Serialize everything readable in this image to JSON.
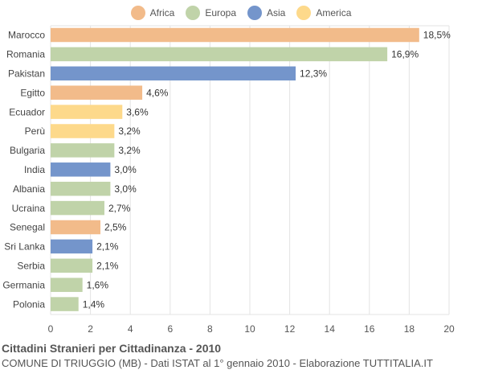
{
  "chart_data": {
    "type": "bar",
    "orientation": "horizontal",
    "title": "Cittadini Stranieri per Cittadinanza - 2010",
    "subtitle": "COMUNE DI TRIUGGIO (MB) - Dati ISTAT al 1° gennaio 2010 - Elaborazione TUTTITALIA.IT",
    "legend": [
      {
        "name": "Africa",
        "color": "#f2bb8a"
      },
      {
        "name": "Europa",
        "color": "#c0d3a9"
      },
      {
        "name": "Asia",
        "color": "#7495cb"
      },
      {
        "name": "America",
        "color": "#fdd98b"
      }
    ],
    "legend_position": "top",
    "xlim": [
      0,
      20
    ],
    "xticks": [
      0,
      2,
      4,
      6,
      8,
      10,
      12,
      14,
      16,
      18,
      20
    ],
    "grid": true,
    "bars": [
      {
        "label": "Marocco",
        "value": 18.5,
        "value_label": "18,5%",
        "group": "Africa"
      },
      {
        "label": "Romania",
        "value": 16.9,
        "value_label": "16,9%",
        "group": "Europa"
      },
      {
        "label": "Pakistan",
        "value": 12.3,
        "value_label": "12,3%",
        "group": "Asia"
      },
      {
        "label": "Egitto",
        "value": 4.6,
        "value_label": "4,6%",
        "group": "Africa"
      },
      {
        "label": "Ecuador",
        "value": 3.6,
        "value_label": "3,6%",
        "group": "America"
      },
      {
        "label": "Perù",
        "value": 3.2,
        "value_label": "3,2%",
        "group": "America"
      },
      {
        "label": "Bulgaria",
        "value": 3.2,
        "value_label": "3,2%",
        "group": "Europa"
      },
      {
        "label": "India",
        "value": 3.0,
        "value_label": "3,0%",
        "group": "Asia"
      },
      {
        "label": "Albania",
        "value": 3.0,
        "value_label": "3,0%",
        "group": "Europa"
      },
      {
        "label": "Ucraina",
        "value": 2.7,
        "value_label": "2,7%",
        "group": "Europa"
      },
      {
        "label": "Senegal",
        "value": 2.5,
        "value_label": "2,5%",
        "group": "Africa"
      },
      {
        "label": "Sri Lanka",
        "value": 2.1,
        "value_label": "2,1%",
        "group": "Asia"
      },
      {
        "label": "Serbia",
        "value": 2.1,
        "value_label": "2,1%",
        "group": "Europa"
      },
      {
        "label": "Germania",
        "value": 1.6,
        "value_label": "1,6%",
        "group": "Europa"
      },
      {
        "label": "Polonia",
        "value": 1.4,
        "value_label": "1,4%",
        "group": "Europa"
      }
    ]
  }
}
